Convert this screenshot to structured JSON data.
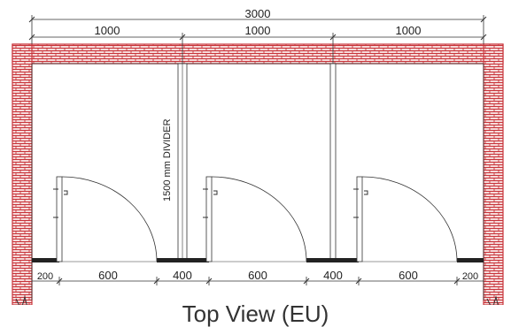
{
  "diagram": {
    "caption": "Top View (EU)",
    "overall_width_label": "3000",
    "cubicle_width_labels": [
      "1000",
      "1000",
      "1000"
    ],
    "divider_label": "1500 mm DIVIDER",
    "bottom_dimension_labels": [
      "200",
      "600",
      "400",
      "600",
      "400",
      "600",
      "200"
    ],
    "colors": {
      "brick": "#c8343a",
      "brick_fill": "#f6dada",
      "line": "#333333",
      "panel": "#222222"
    }
  }
}
